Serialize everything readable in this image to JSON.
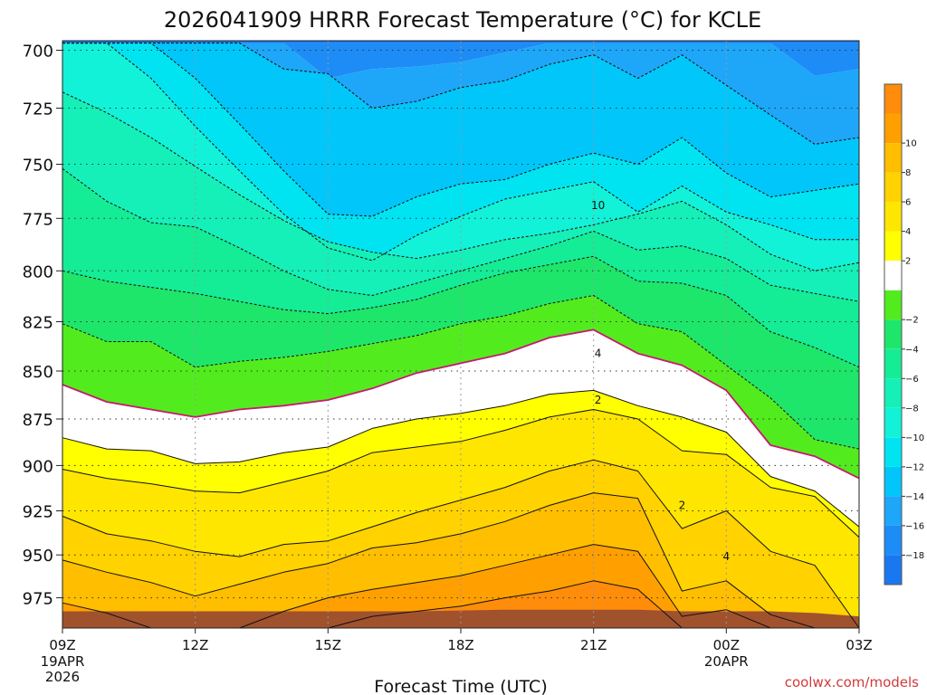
{
  "chart_data": {
    "type": "heatmap",
    "title": "2026041909 HRRR Forecast Temperature (°C) for KCLE",
    "xlabel": "Forecast Time (UTC)",
    "ylabel": "",
    "credit": "coolwx.com/models",
    "x_ticks": [
      {
        "hour": 0,
        "label": "09Z",
        "sub1": "19APR",
        "sub2": "2026"
      },
      {
        "hour": 3,
        "label": "12Z",
        "sub1": "",
        "sub2": ""
      },
      {
        "hour": 6,
        "label": "15Z",
        "sub1": "",
        "sub2": ""
      },
      {
        "hour": 9,
        "label": "18Z",
        "sub1": "",
        "sub2": ""
      },
      {
        "hour": 12,
        "label": "21Z",
        "sub1": "",
        "sub2": ""
      },
      {
        "hour": 15,
        "label": "00Z",
        "sub1": "20APR",
        "sub2": ""
      },
      {
        "hour": 18,
        "label": "03Z",
        "sub1": "",
        "sub2": ""
      }
    ],
    "y_ticks": [
      700,
      725,
      750,
      775,
      800,
      825,
      850,
      875,
      900,
      925,
      950,
      975
    ],
    "xlim": [
      0,
      18
    ],
    "ylim": [
      696,
      993
    ],
    "y_scale": "log-pressure (hPa)",
    "grid": "dotted",
    "surface_pressure": {
      "hours": [
        0,
        2,
        4,
        5,
        6,
        7,
        8,
        10,
        12,
        13,
        14,
        15,
        16,
        17,
        18
      ],
      "values": [
        983,
        983,
        983,
        983,
        983,
        983,
        983,
        982,
        982,
        982,
        983,
        983,
        983,
        984,
        986
      ]
    },
    "isotherms": {
      "hours": [
        0,
        1,
        2,
        3,
        4,
        5,
        6,
        7,
        8,
        9,
        10,
        11,
        12,
        13,
        14,
        15,
        16,
        17,
        18
      ],
      "pressure_by_temp": [
        {
          "temp": -18,
          "values": [
            697,
            697,
            697,
            697,
            697,
            697,
            697,
            697,
            697,
            697,
            697,
            697,
            697,
            697,
            697,
            697,
            697,
            697,
            697
          ]
        },
        {
          "temp": -16,
          "values": [
            697,
            697,
            697,
            697,
            697,
            697,
            712,
            708,
            707,
            705,
            701,
            697,
            697,
            697,
            697,
            697,
            697,
            711,
            708
          ]
        },
        {
          "temp": -14,
          "values": [
            697,
            697,
            697,
            697,
            697,
            708,
            710,
            725,
            722,
            716,
            713,
            706,
            702,
            712,
            702,
            715,
            728,
            741,
            738
          ]
        },
        {
          "temp": -12,
          "values": [
            697,
            697,
            697,
            712,
            732,
            753,
            773,
            774,
            765,
            759,
            757,
            750,
            745,
            750,
            738,
            754,
            765,
            762,
            759
          ]
        },
        {
          "temp": -10,
          "values": [
            697,
            697,
            712,
            733,
            753,
            773,
            789,
            795,
            783,
            774,
            766,
            762,
            758,
            772,
            760,
            772,
            778,
            785,
            785
          ]
        },
        {
          "temp": -8,
          "values": [
            718,
            727,
            738,
            751,
            764,
            776,
            786,
            791,
            794,
            790,
            785,
            782,
            778,
            773,
            767,
            778,
            792,
            800,
            796
          ]
        },
        {
          "temp": -6,
          "values": [
            752,
            767,
            777,
            779,
            789,
            800,
            809,
            812,
            806,
            800,
            794,
            788,
            781,
            790,
            788,
            794,
            807,
            811,
            815
          ]
        },
        {
          "temp": -4,
          "values": [
            800,
            805,
            808,
            811,
            815,
            819,
            821,
            818,
            814,
            807,
            801,
            797,
            793,
            805,
            806,
            812,
            830,
            838,
            848
          ]
        },
        {
          "temp": -2,
          "values": [
            826,
            835,
            835,
            848,
            845,
            843,
            840,
            836,
            832,
            826,
            822,
            816,
            812,
            826,
            830,
            847,
            864,
            886,
            891
          ]
        },
        {
          "temp": 0,
          "values": [
            857,
            866,
            870,
            874,
            870,
            868,
            865,
            859,
            851,
            846,
            841,
            833,
            829,
            841,
            847,
            860,
            889,
            895,
            907
          ]
        },
        {
          "temp": 2,
          "values": [
            885,
            891,
            892,
            899,
            898,
            893,
            890,
            880,
            875,
            872,
            868,
            862,
            860,
            868,
            874,
            882,
            906,
            914,
            934
          ]
        },
        {
          "temp": 4,
          "values": [
            902,
            907,
            910,
            914,
            915,
            909,
            903,
            893,
            890,
            887,
            881,
            874,
            870,
            875,
            892,
            894,
            912,
            917,
            940
          ]
        },
        {
          "temp": 6,
          "values": [
            928,
            938,
            942,
            948,
            951,
            944,
            942,
            934,
            926,
            919,
            912,
            903,
            897,
            903,
            935,
            925,
            948,
            956,
            993
          ]
        },
        {
          "temp": 8,
          "values": [
            953,
            960,
            966,
            974,
            967,
            960,
            955,
            946,
            943,
            938,
            931,
            922,
            915,
            918,
            971,
            965,
            985,
            993,
            993
          ]
        },
        {
          "temp": 10,
          "values": [
            978,
            984,
            993,
            993,
            993,
            983,
            975,
            970,
            966,
            962,
            956,
            950,
            944,
            948,
            986,
            982,
            993,
            993,
            993
          ]
        },
        {
          "temp": 12,
          "values": [
            993,
            993,
            993,
            993,
            993,
            993,
            993,
            986,
            983,
            980,
            975,
            971,
            965,
            970,
            993,
            993,
            993,
            993,
            993
          ]
        },
        {
          "temp": 14,
          "values": [
            993,
            993,
            993,
            993,
            993,
            993,
            993,
            993,
            993,
            993,
            993,
            993,
            993,
            993,
            993,
            993,
            993,
            993,
            993
          ]
        }
      ]
    },
    "contour_labels": [
      {
        "text": "10",
        "hour": 12.1,
        "pressure": 769
      },
      {
        "text": "4",
        "hour": 12.1,
        "pressure": 841
      },
      {
        "text": "2",
        "hour": 12.1,
        "pressure": 865
      },
      {
        "text": "2",
        "hour": 14.0,
        "pressure": 922
      },
      {
        "text": "4",
        "hour": 15.0,
        "pressure": 951
      }
    ],
    "colorbar": {
      "bands": [
        {
          "min": -20,
          "max": -18,
          "color": "#1978f0"
        },
        {
          "min": -18,
          "max": -16,
          "color": "#1e8cf6"
        },
        {
          "min": -16,
          "max": -14,
          "color": "#1ea6f9"
        },
        {
          "min": -14,
          "max": -12,
          "color": "#00c6fa"
        },
        {
          "min": -12,
          "max": -10,
          "color": "#00e4f2"
        },
        {
          "min": -10,
          "max": -8,
          "color": "#12f2d8"
        },
        {
          "min": -8,
          "max": -6,
          "color": "#14f0b8"
        },
        {
          "min": -6,
          "max": -4,
          "color": "#14ec96"
        },
        {
          "min": -4,
          "max": -2,
          "color": "#1ee66a"
        },
        {
          "min": -2,
          "max": 0,
          "color": "#52ec1e"
        },
        {
          "min": 0,
          "max": 2,
          "color": "#ffffff"
        },
        {
          "min": 2,
          "max": 4,
          "color": "#ffff00"
        },
        {
          "min": 4,
          "max": 6,
          "color": "#ffe600"
        },
        {
          "min": 6,
          "max": 8,
          "color": "#ffd200"
        },
        {
          "min": 8,
          "max": 10,
          "color": "#ffbe00"
        },
        {
          "min": 10,
          "max": 12,
          "color": "#ffa000"
        },
        {
          "min": 12,
          "max": 14,
          "color": "#ff8c0a"
        }
      ],
      "tick_labels": [
        "10",
        "8",
        "6",
        "4",
        "2",
        "−2",
        "−4",
        "−6",
        "−8",
        "−10",
        "−12",
        "−14",
        "−16",
        "−18"
      ],
      "tick_values": [
        10,
        8,
        6,
        4,
        2,
        -2,
        -4,
        -6,
        -8,
        -10,
        -12,
        -14,
        -16,
        -18
      ]
    }
  }
}
